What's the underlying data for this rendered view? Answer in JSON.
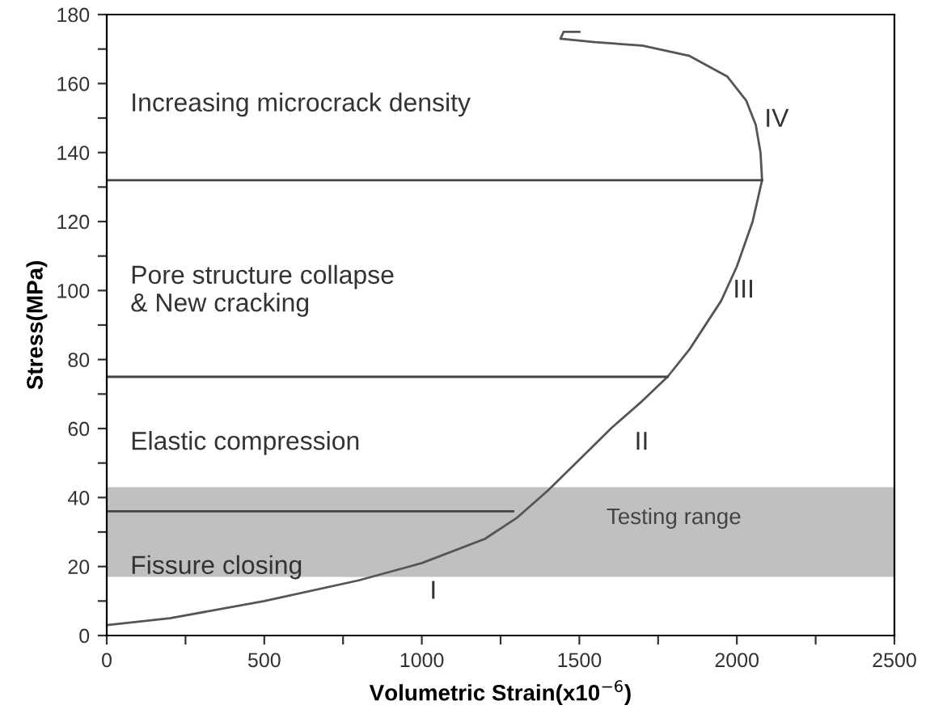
{
  "chart_data": {
    "type": "line",
    "xlabel": "Volumetric Strain(x10$^{−6}$)",
    "ylabel": "Stress(MPa)",
    "xlim": [
      0,
      2500
    ],
    "ylim": [
      0,
      180
    ],
    "xticks": [
      0,
      {
        "value": 250,
        "label": null
      },
      500,
      {
        "value": 750,
        "label": null
      },
      1000,
      {
        "value": 1250,
        "label": null
      },
      1500,
      {
        "value": 1750,
        "label": null
      },
      2000,
      {
        "value": 2250,
        "label": null
      },
      2500
    ],
    "yticks": [
      0,
      {
        "value": 10,
        "label": null
      },
      20,
      {
        "value": 30,
        "label": null
      },
      40,
      {
        "value": 50,
        "label": null
      },
      60,
      {
        "value": 70,
        "label": null
      },
      80,
      {
        "value": 90,
        "label": null
      },
      100,
      {
        "value": 110,
        "label": null
      },
      120,
      {
        "value": 130,
        "label": null
      },
      140,
      {
        "value": 150,
        "label": null
      },
      160,
      {
        "value": 170,
        "label": null
      },
      180
    ],
    "series": [
      {
        "color": "#555555",
        "x": [
          0,
          200,
          500,
          800,
          1000,
          1200,
          1300,
          1400,
          1500,
          1600,
          1700,
          1780,
          1850,
          1950,
          2000,
          2050,
          2080,
          2075,
          2060,
          2030,
          1970,
          1850,
          1700,
          1550,
          1440,
          1450,
          1500
        ],
        "values": [
          3,
          5,
          10,
          16,
          21,
          28,
          34,
          42,
          51,
          60,
          68,
          75,
          83,
          97,
          107,
          120,
          132,
          140,
          148,
          155,
          162,
          168,
          171,
          172,
          173,
          175,
          175
        ]
      },
      {
        "color": "#444444",
        "x": [
          0,
          2080
        ],
        "values": [
          132,
          132
        ]
      },
      {
        "color": "#444444",
        "x": [
          0,
          1780
        ],
        "values": [
          75,
          75
        ]
      },
      {
        "color": "#444444",
        "x": [
          0,
          1290
        ],
        "values": [
          36,
          36
        ]
      }
    ],
    "bands": [
      {
        "axis": "y",
        "from": 17,
        "to": 43,
        "label": "Testing range",
        "color": "#c0c0c0"
      }
    ],
    "annotations": [
      "Increasing microcrack density",
      "Pore structure collapse\n& New cracking",
      "Elastic compression",
      "Fissure closing",
      "I",
      "II",
      "III",
      "IV"
    ],
    "grid": false,
    "legend": false
  }
}
